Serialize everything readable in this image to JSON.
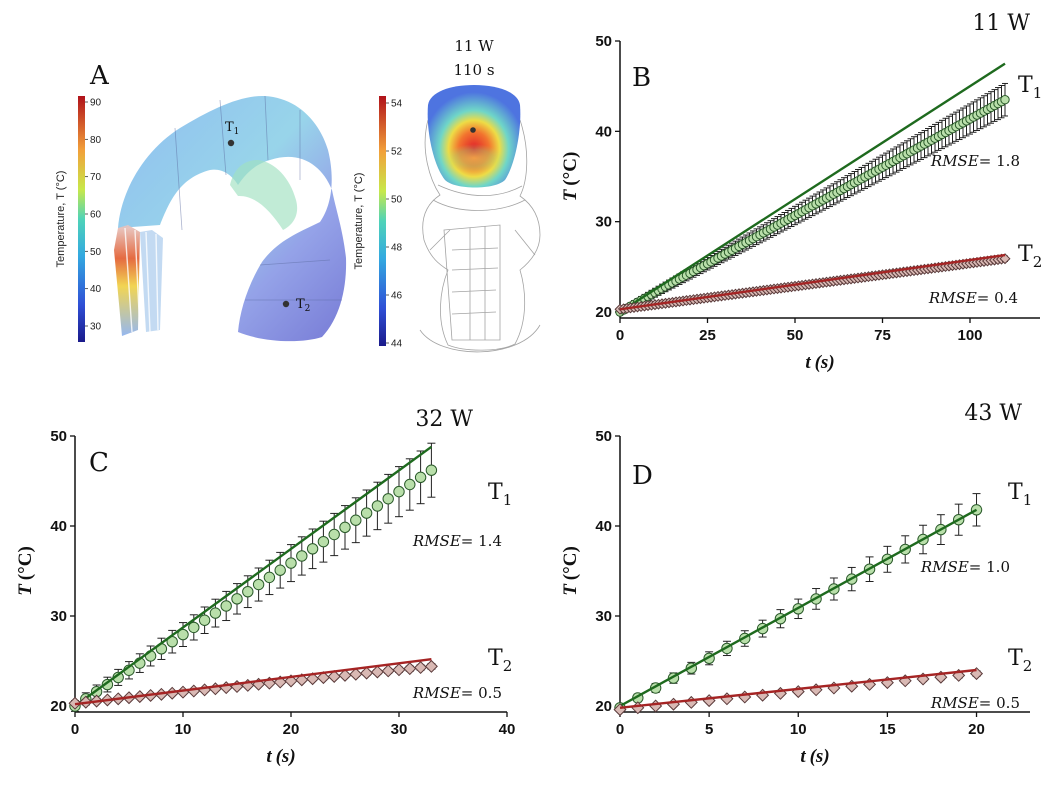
{
  "panelA": {
    "letter": "A",
    "colorbar_left": {
      "label": "Temperature, T (°C)",
      "ticks": [
        "90",
        "80",
        "70",
        "60",
        "50",
        "40",
        "30"
      ]
    },
    "colorbar_right": {
      "label": "Temperature, T (°C)",
      "ticks": [
        "54",
        "52",
        "50",
        "48",
        "46",
        "44"
      ]
    },
    "sim_power": "11 W",
    "sim_time": "110 s",
    "point1": "T",
    "point1_sub": "1",
    "point2": "T",
    "point2_sub": "2"
  },
  "colors": {
    "model_T1": "#1e6a1e",
    "model_T2": "#a52424",
    "marker_T1": "#b9dfaa",
    "marker_T2": "#d9b9b4",
    "errorbar": "#222222"
  },
  "chart_data": [
    {
      "type": "scatter",
      "letter": "B",
      "title": "11 W",
      "xlabel": "t",
      "xlabel_unit": "(s)",
      "ylabel": "T",
      "ylabel_unit": "(°C)",
      "xlim": [
        0,
        120
      ],
      "ylim": [
        20,
        50
      ],
      "xticks": [
        0,
        25,
        50,
        75,
        100
      ],
      "yticks": [
        20,
        30,
        40,
        50
      ],
      "x_end": 110,
      "n_points": 111,
      "series": [
        {
          "name": "T",
          "sub": "1",
          "rmse": "1.8",
          "start": 20.0,
          "end": 43.5,
          "err_max": 1.8,
          "model_line": [
            [
              0,
              20.0
            ],
            [
              110,
              47.5
            ]
          ]
        },
        {
          "name": "T",
          "sub": "2",
          "rmse": "0.4",
          "start": 20.3,
          "end": 25.9,
          "err_max": 0.3,
          "model_line": [
            [
              0,
              20.3
            ],
            [
              110,
              26.3
            ]
          ]
        }
      ]
    },
    {
      "type": "scatter",
      "letter": "C",
      "title": "32 W",
      "xlabel": "t",
      "xlabel_unit": "(s)",
      "ylabel": "T",
      "ylabel_unit": "(°C)",
      "xlim": [
        0,
        40
      ],
      "ylim": [
        20,
        50
      ],
      "xticks": [
        0,
        10,
        20,
        30,
        40
      ],
      "yticks": [
        20,
        30,
        40,
        50
      ],
      "x_end": 33,
      "n_points": 34,
      "series": [
        {
          "name": "T",
          "sub": "1",
          "rmse": "1.4",
          "start": 20.0,
          "end": 46.2,
          "err_max": 3.0,
          "model_line": [
            [
              0,
              20.0
            ],
            [
              33,
              48.8
            ]
          ]
        },
        {
          "name": "T",
          "sub": "2",
          "rmse": "0.5",
          "start": 20.3,
          "end": 24.4,
          "err_max": 0.3,
          "model_line": [
            [
              0,
              20.2
            ],
            [
              33,
              25.2
            ]
          ]
        }
      ]
    },
    {
      "type": "scatter",
      "letter": "D",
      "title": "43 W",
      "xlabel": "t",
      "xlabel_unit": "(s)",
      "ylabel": "T",
      "ylabel_unit": "(°C)",
      "xlim": [
        0,
        23
      ],
      "ylim": [
        20,
        50
      ],
      "xticks": [
        0,
        5,
        10,
        15,
        20
      ],
      "yticks": [
        20,
        30,
        40,
        50
      ],
      "x_end": 20,
      "n_points": 21,
      "series": [
        {
          "name": "T",
          "sub": "1",
          "rmse": "1.0",
          "start": 19.8,
          "end": 41.8,
          "err_max": 1.8,
          "model_line": [
            [
              0,
              20.0
            ],
            [
              20,
              41.8
            ]
          ]
        },
        {
          "name": "T",
          "sub": "2",
          "rmse": "0.5",
          "start": 19.6,
          "end": 23.6,
          "err_max": 0.3,
          "model_line": [
            [
              0,
              19.8
            ],
            [
              20,
              24.0
            ]
          ]
        }
      ]
    }
  ]
}
